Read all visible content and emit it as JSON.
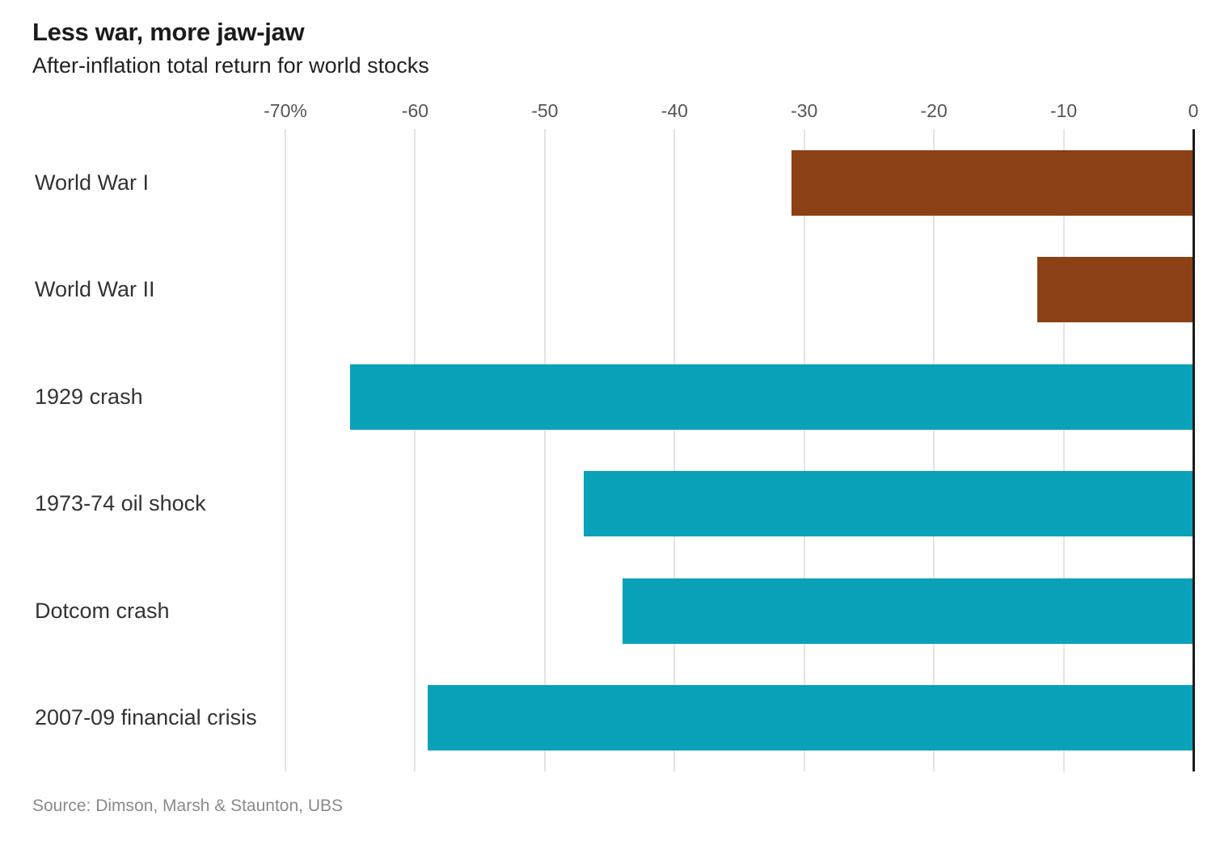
{
  "header": {
    "title": "Less war, more jaw-jaw",
    "subtitle": "After-inflation total return for world stocks"
  },
  "footer": {
    "source": "Source: Dimson, Marsh & Staunton, UBS"
  },
  "chart_data": {
    "type": "bar",
    "orientation": "horizontal",
    "title": "Less war, more jaw-jaw",
    "subtitle": "After-inflation total return for world stocks",
    "xlabel": "",
    "ylabel": "",
    "categories": [
      "World War I",
      "World War II",
      "1929 crash",
      "1973-74 oil shock",
      "Dotcom crash",
      "2007-09 financial crisis"
    ],
    "values": [
      -31,
      -12,
      -65,
      -47,
      -44,
      -59
    ],
    "unit": "%",
    "bar_colors": [
      "#8b4115",
      "#8b4115",
      "#0aa2b8",
      "#0aa2b8",
      "#0aa2b8",
      "#0aa2b8"
    ],
    "color_meaning": {
      "#8b4115": "world wars (brown)",
      "#0aa2b8": "market crashes (teal)"
    },
    "xlim": [
      -70,
      0
    ],
    "xticks": [
      -70,
      -60,
      -50,
      -40,
      -30,
      -20,
      -10,
      0
    ],
    "xtick_labels": [
      "-70%",
      "-60",
      "-50",
      "-40",
      "-30",
      "-20",
      "-10",
      "0"
    ],
    "grid": "vertical light-gray gridlines at each tick; dark vertical baseline at 0",
    "legend": "none",
    "source": "Source: Dimson, Marsh & Staunton, UBS"
  },
  "style": {
    "background": "#ffffff",
    "title_color": "#1b1b1b",
    "subtitle_color": "#222222",
    "label_color": "#333333",
    "tick_color": "#555555",
    "gridline_color": "#e4e4e4",
    "zero_axis_color": "#1a1a1a",
    "source_color": "#8a8a8a",
    "war_bar_color": "#8b4115",
    "crash_bar_color": "#0aa2b8"
  }
}
